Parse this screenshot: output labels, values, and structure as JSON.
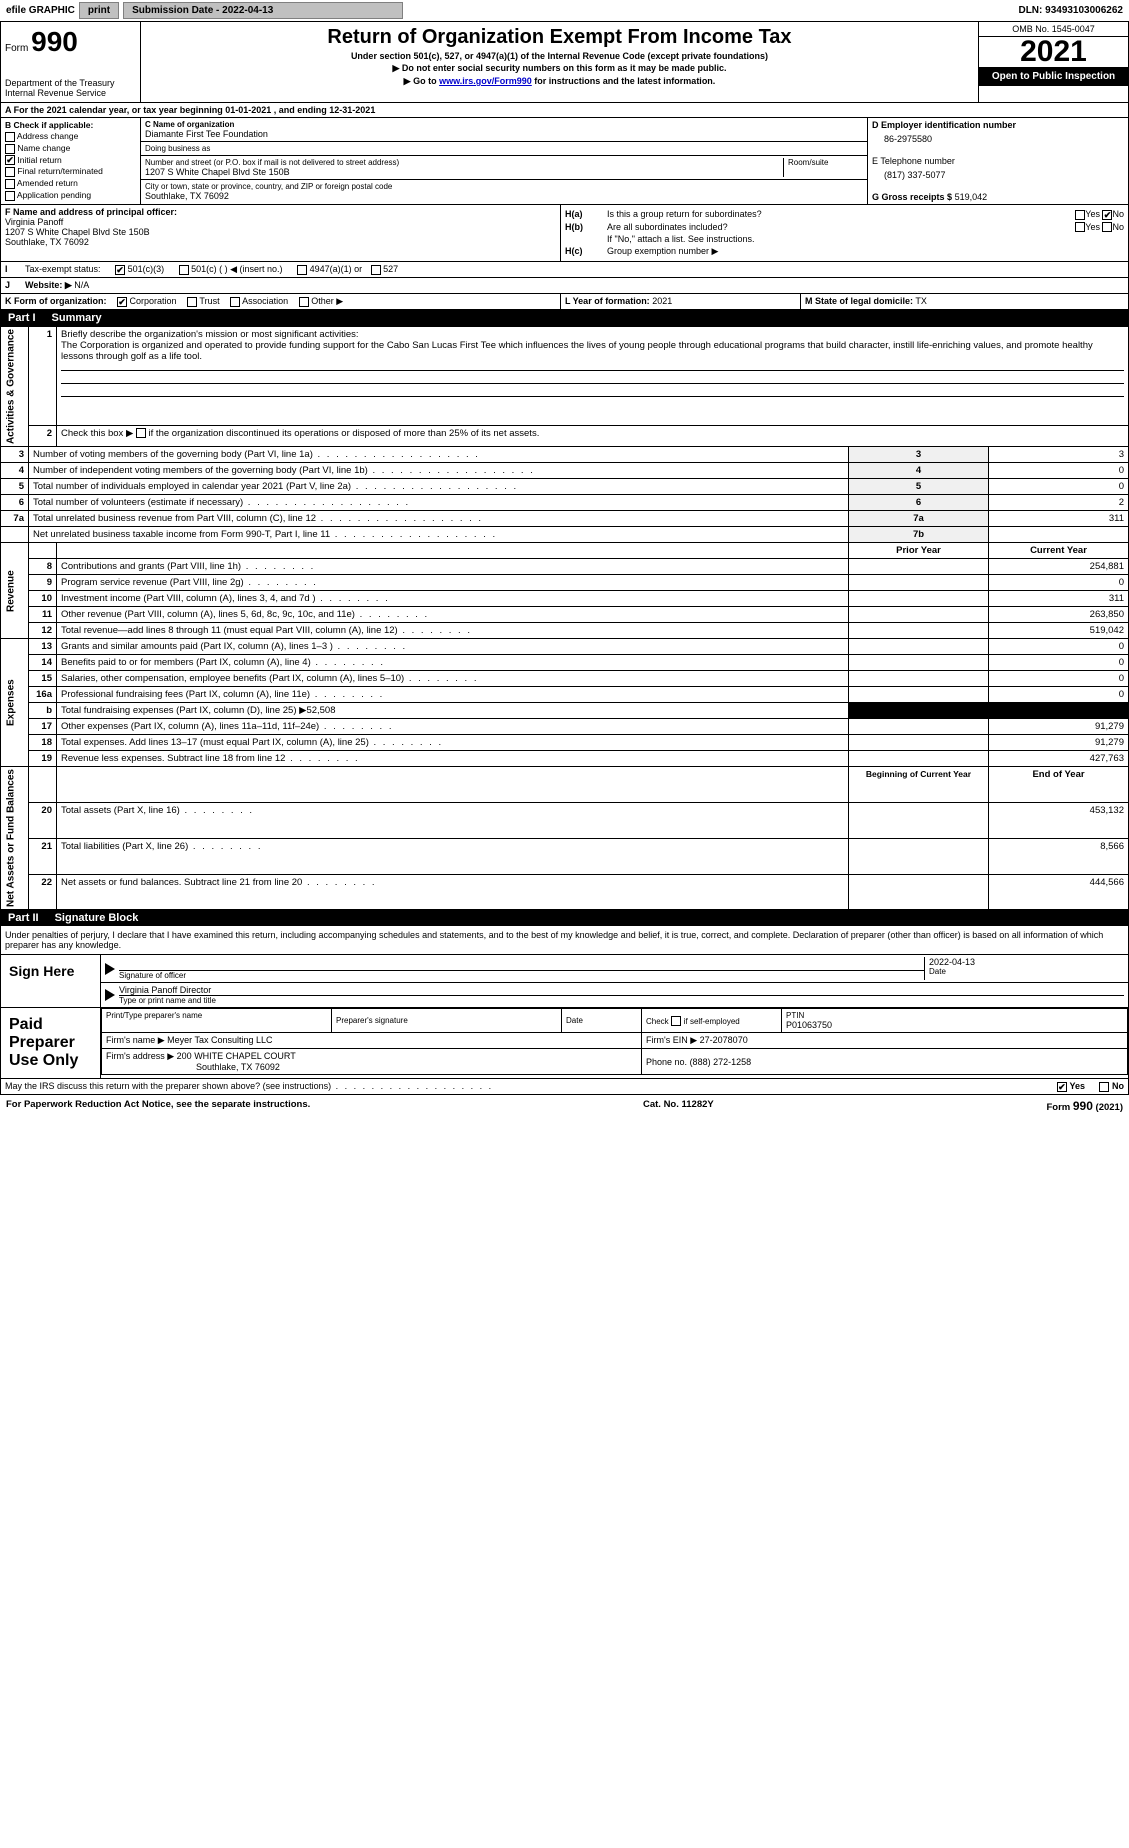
{
  "topbar": {
    "efile": "efile GRAPHIC",
    "print": "print",
    "submission_label": "Submission Date - 2022-04-13",
    "dln_label": "DLN: 93493103006262"
  },
  "header": {
    "form_word": "Form",
    "form_number": "990",
    "dept": "Department of the Treasury",
    "irs": "Internal Revenue Service",
    "title": "Return of Organization Exempt From Income Tax",
    "subtitle1": "Under section 501(c), 527, or 4947(a)(1) of the Internal Revenue Code (except private foundations)",
    "subtitle2": "▶ Do not enter social security numbers on this form as it may be made public.",
    "subtitle3_pre": "▶ Go to ",
    "subtitle3_link": "www.irs.gov/Form990",
    "subtitle3_post": " for instructions and the latest information.",
    "omb": "OMB No. 1545-0047",
    "year": "2021",
    "open_public": "Open to Public Inspection"
  },
  "period": {
    "text": "A For the 2021 calendar year, or tax year beginning 01-01-2021    , and ending 12-31-2021"
  },
  "boxB": {
    "header": "B Check if applicable:",
    "items": [
      "Address change",
      "Name change",
      "Initial return",
      "Final return/terminated",
      "Amended return",
      "Application pending"
    ],
    "checked": [
      false,
      false,
      true,
      false,
      false,
      false
    ]
  },
  "boxC": {
    "name_label": "C Name of organization",
    "name": "Diamante First Tee Foundation",
    "dba_label": "Doing business as",
    "dba": "",
    "addr_label": "Number and street (or P.O. box if mail is not delivered to street address)",
    "room_label": "Room/suite",
    "addr": "1207 S White Chapel Blvd Ste 150B",
    "city_label": "City or town, state or province, country, and ZIP or foreign postal code",
    "city": "Southlake, TX  76092"
  },
  "boxD": {
    "label": "D Employer identification number",
    "value": "86-2975580"
  },
  "boxE": {
    "label": "E Telephone number",
    "value": "(817) 337-5077"
  },
  "boxG": {
    "label": "G Gross receipts $",
    "value": "519,042"
  },
  "boxF": {
    "label": "F Name and address of principal officer:",
    "name": "Virginia Panoff",
    "addr1": "1207 S White Chapel Blvd Ste 150B",
    "addr2": "Southlake, TX  76092"
  },
  "boxH": {
    "a_label": "H(a)",
    "a_text": "Is this a group return for subordinates?",
    "a_yes": "Yes",
    "a_no": "No",
    "b_label": "H(b)",
    "b_text": "Are all subordinates included?",
    "b_yes": "Yes",
    "b_no": "No",
    "b_note": "If \"No,\" attach a list. See instructions.",
    "c_label": "H(c)",
    "c_text": "Group exemption number ▶"
  },
  "boxI": {
    "label": "I",
    "text": "Tax-exempt status:",
    "opts": [
      "501(c)(3)",
      "501(c) (   ) ◀ (insert no.)",
      "4947(a)(1) or",
      "527"
    ],
    "checked": [
      true,
      false,
      false,
      false
    ]
  },
  "boxJ": {
    "label": "J",
    "text": "Website: ▶",
    "value": "N/A"
  },
  "boxK": {
    "label": "K Form of organization:",
    "opts": [
      "Corporation",
      "Trust",
      "Association",
      "Other ▶"
    ],
    "checked": [
      true,
      false,
      false,
      false
    ]
  },
  "boxL": {
    "label": "L Year of formation:",
    "value": "2021"
  },
  "boxM": {
    "label": "M State of legal domicile:",
    "value": "TX"
  },
  "partI": {
    "label": "Part I",
    "title": "Summary"
  },
  "summary": {
    "side_labels": [
      "Activities & Governance",
      "Revenue",
      "Expenses",
      "Net Assets or Fund Balances"
    ],
    "line1_label": "1",
    "line1_text": "Briefly describe the organization's mission or most significant activities:",
    "mission": "The Corporation is organized and operated to provide funding support for the Cabo San Lucas First Tee which influences the lives of young people through educational programs that build character, instill life-enriching values, and promote healthy lessons through golf as a life tool.",
    "line2_label": "2",
    "line2_text": "Check this box ▶  if the organization discontinued its operations or disposed of more than 25% of its net assets.",
    "rows_ag": [
      {
        "n": "3",
        "text": "Number of voting members of the governing body (Part VI, line 1a)",
        "box": "3",
        "val": "3"
      },
      {
        "n": "4",
        "text": "Number of independent voting members of the governing body (Part VI, line 1b)",
        "box": "4",
        "val": "0"
      },
      {
        "n": "5",
        "text": "Total number of individuals employed in calendar year 2021 (Part V, line 2a)",
        "box": "5",
        "val": "0"
      },
      {
        "n": "6",
        "text": "Total number of volunteers (estimate if necessary)",
        "box": "6",
        "val": "2"
      },
      {
        "n": "7a",
        "text": "Total unrelated business revenue from Part VIII, column (C), line 12",
        "box": "7a",
        "val": "311"
      },
      {
        "n": "",
        "text": "Net unrelated business taxable income from Form 990-T, Part I, line 11",
        "box": "7b",
        "val": ""
      }
    ],
    "col_prior": "Prior Year",
    "col_current": "Current Year",
    "rows_rev": [
      {
        "n": "8",
        "text": "Contributions and grants (Part VIII, line 1h)",
        "prior": "",
        "curr": "254,881"
      },
      {
        "n": "9",
        "text": "Program service revenue (Part VIII, line 2g)",
        "prior": "",
        "curr": "0"
      },
      {
        "n": "10",
        "text": "Investment income (Part VIII, column (A), lines 3, 4, and 7d )",
        "prior": "",
        "curr": "311"
      },
      {
        "n": "11",
        "text": "Other revenue (Part VIII, column (A), lines 5, 6d, 8c, 9c, 10c, and 11e)",
        "prior": "",
        "curr": "263,850"
      },
      {
        "n": "12",
        "text": "Total revenue—add lines 8 through 11 (must equal Part VIII, column (A), line 12)",
        "prior": "",
        "curr": "519,042"
      }
    ],
    "rows_exp": [
      {
        "n": "13",
        "text": "Grants and similar amounts paid (Part IX, column (A), lines 1–3 )",
        "prior": "",
        "curr": "0"
      },
      {
        "n": "14",
        "text": "Benefits paid to or for members (Part IX, column (A), line 4)",
        "prior": "",
        "curr": "0"
      },
      {
        "n": "15",
        "text": "Salaries, other compensation, employee benefits (Part IX, column (A), lines 5–10)",
        "prior": "",
        "curr": "0"
      },
      {
        "n": "16a",
        "text": "Professional fundraising fees (Part IX, column (A), line 11e)",
        "prior": "",
        "curr": "0"
      },
      {
        "n": "b",
        "text": "Total fundraising expenses (Part IX, column (D), line 25) ▶52,508",
        "prior": "__BLACK__",
        "curr": "__BLACK__"
      },
      {
        "n": "17",
        "text": "Other expenses (Part IX, column (A), lines 11a–11d, 11f–24e)",
        "prior": "",
        "curr": "91,279"
      },
      {
        "n": "18",
        "text": "Total expenses. Add lines 13–17 (must equal Part IX, column (A), line 25)",
        "prior": "",
        "curr": "91,279"
      },
      {
        "n": "19",
        "text": "Revenue less expenses. Subtract line 18 from line 12",
        "prior": "",
        "curr": "427,763"
      }
    ],
    "col_begin": "Beginning of Current Year",
    "col_end": "End of Year",
    "rows_net": [
      {
        "n": "20",
        "text": "Total assets (Part X, line 16)",
        "prior": "",
        "curr": "453,132"
      },
      {
        "n": "21",
        "text": "Total liabilities (Part X, line 26)",
        "prior": "",
        "curr": "8,566"
      },
      {
        "n": "22",
        "text": "Net assets or fund balances. Subtract line 21 from line 20",
        "prior": "",
        "curr": "444,566"
      }
    ]
  },
  "partII": {
    "label": "Part II",
    "title": "Signature Block"
  },
  "sig": {
    "declaration": "Under penalties of perjury, I declare that I have examined this return, including accompanying schedules and statements, and to the best of my knowledge and belief, it is true, correct, and complete. Declaration of preparer (other than officer) is based on all information of which preparer has any knowledge.",
    "sign_here": "Sign Here",
    "sig_officer_label": "Signature of officer",
    "date_label": "Date",
    "date_value": "2022-04-13",
    "name_title": "Virginia Panoff  Director",
    "name_title_label": "Type or print name and title"
  },
  "preparer": {
    "side": "Paid Preparer Use Only",
    "col_name": "Print/Type preparer's name",
    "col_sig": "Preparer's signature",
    "col_date": "Date",
    "col_check_pre": "Check",
    "col_check_post": "if self-employed",
    "col_ptin": "PTIN",
    "ptin_value": "P01063750",
    "firm_name_label": "Firm's name    ▶",
    "firm_name": "Meyer Tax Consulting LLC",
    "firm_ein_label": "Firm's EIN ▶",
    "firm_ein": "27-2078070",
    "firm_addr_label": "Firm's address ▶",
    "firm_addr1": "200 WHITE CHAPEL COURT",
    "firm_addr2": "Southlake, TX  76092",
    "phone_label": "Phone no.",
    "phone": "(888) 272-1258"
  },
  "discuss": {
    "text": "May the IRS discuss this return with the preparer shown above? (see instructions)",
    "yes": "Yes",
    "no": "No"
  },
  "footer": {
    "left": "For Paperwork Reduction Act Notice, see the separate instructions.",
    "center": "Cat. No. 11282Y",
    "right": "Form 990 (2021)"
  }
}
